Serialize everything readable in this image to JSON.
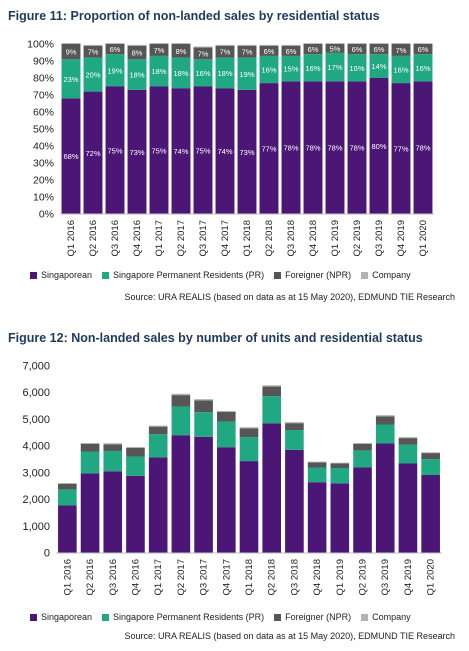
{
  "colors": {
    "singaporean": "#4b1675",
    "pr": "#1fa882",
    "foreigner": "#565656",
    "company": "#b3b3b3",
    "title": "#1f3a5f"
  },
  "figure1": {
    "title": "Figure 11: Proportion of non-landed sales by residential status",
    "source": "Source: URA REALIS (based on data as at 15 May 2020), EDMUND TIE Research",
    "legend": [
      "Singaporean",
      "Singapore Permanent Residents (PR)",
      "Foreigner (NPR)",
      "Company"
    ]
  },
  "figure2": {
    "title": "Figure 12: Non-landed sales by number of units and residential status",
    "source": "Source: URA REALIS (based on data as at 15 May 2020), EDMUND TIE Research",
    "legend": [
      "Singaporean",
      "Singapore Permanent Residents (PR)",
      "Foreigner (NPR)",
      "Company"
    ]
  },
  "chart_data": [
    {
      "type": "bar",
      "stacked": true,
      "title": "Figure 11: Proportion of non-landed sales by residential status",
      "categories": [
        "Q1 2016",
        "Q2 2016",
        "Q3 2016",
        "Q4 2016",
        "Q1 2017",
        "Q2 2017",
        "Q3 2017",
        "Q4 2017",
        "Q1 2018",
        "Q2 2018",
        "Q3 2018",
        "Q4 2018",
        "Q1 2019",
        "Q2 2019",
        "Q3 2019",
        "Q4 2019",
        "Q1 2020"
      ],
      "ylim": [
        0,
        100
      ],
      "yticks": [
        "0%",
        "10%",
        "20%",
        "30%",
        "40%",
        "50%",
        "60%",
        "70%",
        "80%",
        "90%",
        "100%"
      ],
      "series": [
        {
          "name": "Singaporean",
          "values": [
            68,
            72,
            75,
            73,
            75,
            74,
            75,
            74,
            73,
            77,
            78,
            78,
            78,
            78,
            80,
            77,
            78
          ],
          "labels": [
            "68%",
            "72%",
            "75%",
            "73%",
            "75%",
            "74%",
            "75%",
            "74%",
            "73%",
            "77%",
            "78%",
            "78%",
            "78%",
            "78%",
            "80%",
            "77%",
            "78%"
          ]
        },
        {
          "name": "Singapore Permanent Residents (PR)",
          "values": [
            23,
            20,
            19,
            18,
            18,
            18,
            16,
            18,
            19,
            16,
            15,
            16,
            17,
            16,
            14,
            16,
            16
          ],
          "labels": [
            "23%",
            "20%",
            "19%",
            "18%",
            "18%",
            "18%",
            "16%",
            "18%",
            "19%",
            "16%",
            "15%",
            "16%",
            "17%",
            "16%",
            "14%",
            "16%",
            "16%"
          ]
        },
        {
          "name": "Foreigner (NPR)",
          "values": [
            9,
            7,
            6,
            8,
            7,
            8,
            7,
            7,
            7,
            6,
            6,
            6,
            5,
            6,
            6,
            7,
            6
          ],
          "labels": [
            "9%",
            "7%",
            "6%",
            "8%",
            "7%",
            "8%",
            "7%",
            "7%",
            "7%",
            "6%",
            "6%",
            "6%",
            "5%",
            "6%",
            "6%",
            "7%",
            "6%"
          ]
        },
        {
          "name": "Company",
          "values": [
            0.5,
            0.5,
            0.5,
            0.5,
            0.5,
            0.5,
            0.5,
            0.5,
            0.5,
            0.5,
            0.5,
            0.5,
            0.5,
            0.5,
            0.5,
            0.5,
            0.5
          ]
        }
      ],
      "legend_position": "bottom",
      "grid": false
    },
    {
      "type": "bar",
      "stacked": true,
      "title": "Figure 12: Non-landed sales by number of units and residential status",
      "categories": [
        "Q1 2016",
        "Q2 2016",
        "Q3 2016",
        "Q4 2016",
        "Q1 2017",
        "Q2 2017",
        "Q3 2017",
        "Q4 2017",
        "Q1 2018",
        "Q2 2018",
        "Q3 2018",
        "Q4 2018",
        "Q1 2019",
        "Q2 2019",
        "Q3 2019",
        "Q4 2019",
        "Q1 2020"
      ],
      "ylim": [
        0,
        7000
      ],
      "yticks": [
        "0",
        "1,000",
        "2,000",
        "3,000",
        "4,000",
        "5,000",
        "6,000",
        "7,000"
      ],
      "series": [
        {
          "name": "Singaporean",
          "values": [
            1780,
            2980,
            3060,
            2890,
            3580,
            4410,
            4350,
            3960,
            3440,
            4850,
            3860,
            2650,
            2610,
            3200,
            4100,
            3350,
            2920
          ]
        },
        {
          "name": "Singapore Permanent Residents (PR)",
          "values": [
            600,
            820,
            760,
            720,
            870,
            1070,
            920,
            960,
            900,
            1020,
            740,
            550,
            570,
            640,
            710,
            700,
            590
          ]
        },
        {
          "name": "Foreigner (NPR)",
          "values": [
            210,
            280,
            250,
            320,
            280,
            430,
            440,
            360,
            330,
            360,
            260,
            190,
            170,
            240,
            300,
            250,
            230
          ]
        },
        {
          "name": "Company",
          "values": [
            30,
            40,
            40,
            40,
            40,
            50,
            50,
            40,
            40,
            50,
            40,
            30,
            30,
            40,
            50,
            40,
            30
          ]
        }
      ],
      "legend_position": "bottom",
      "grid": false
    }
  ]
}
